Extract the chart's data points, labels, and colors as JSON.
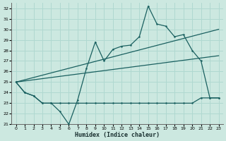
{
  "xlabel": "Humidex (Indice chaleur)",
  "xlim": [
    -0.5,
    23.5
  ],
  "ylim": [
    21,
    32.5
  ],
  "xticks": [
    0,
    1,
    2,
    3,
    4,
    5,
    6,
    7,
    8,
    9,
    10,
    11,
    12,
    13,
    14,
    15,
    16,
    17,
    18,
    19,
    20,
    21,
    22,
    23
  ],
  "yticks": [
    21,
    22,
    23,
    24,
    25,
    26,
    27,
    28,
    29,
    30,
    31,
    32
  ],
  "bg_color": "#cce8e0",
  "line_color": "#1a6060",
  "grid_color": "#b0d8d0",
  "line1_x": [
    0,
    1,
    2,
    3,
    4,
    5,
    6,
    7,
    8,
    9,
    10,
    11,
    12,
    13,
    14,
    15,
    16,
    17,
    18,
    19,
    20,
    21,
    22,
    23
  ],
  "line1_y": [
    25.0,
    24.0,
    23.7,
    23.0,
    23.0,
    22.2,
    21.0,
    23.3,
    26.3,
    28.8,
    27.0,
    28.1,
    28.4,
    28.5,
    29.3,
    32.2,
    30.5,
    30.3,
    29.3,
    29.5,
    28.0,
    27.0,
    23.5,
    23.5
  ],
  "line2_x": [
    0,
    1,
    2,
    3,
    4,
    5,
    6,
    7,
    8,
    9,
    10,
    11,
    12,
    13,
    14,
    15,
    16,
    17,
    18,
    19,
    20,
    21,
    22,
    23
  ],
  "line2_y": [
    25.0,
    24.0,
    23.7,
    23.0,
    23.0,
    23.0,
    23.0,
    23.0,
    23.0,
    23.0,
    23.0,
    23.0,
    23.0,
    23.0,
    23.0,
    23.0,
    23.0,
    23.0,
    23.0,
    23.0,
    23.0,
    23.5,
    23.5,
    23.5
  ],
  "line3_x": [
    0,
    23
  ],
  "line3_y": [
    25.0,
    30.0
  ],
  "line4_x": [
    0,
    23
  ],
  "line4_y": [
    25.0,
    27.5
  ]
}
